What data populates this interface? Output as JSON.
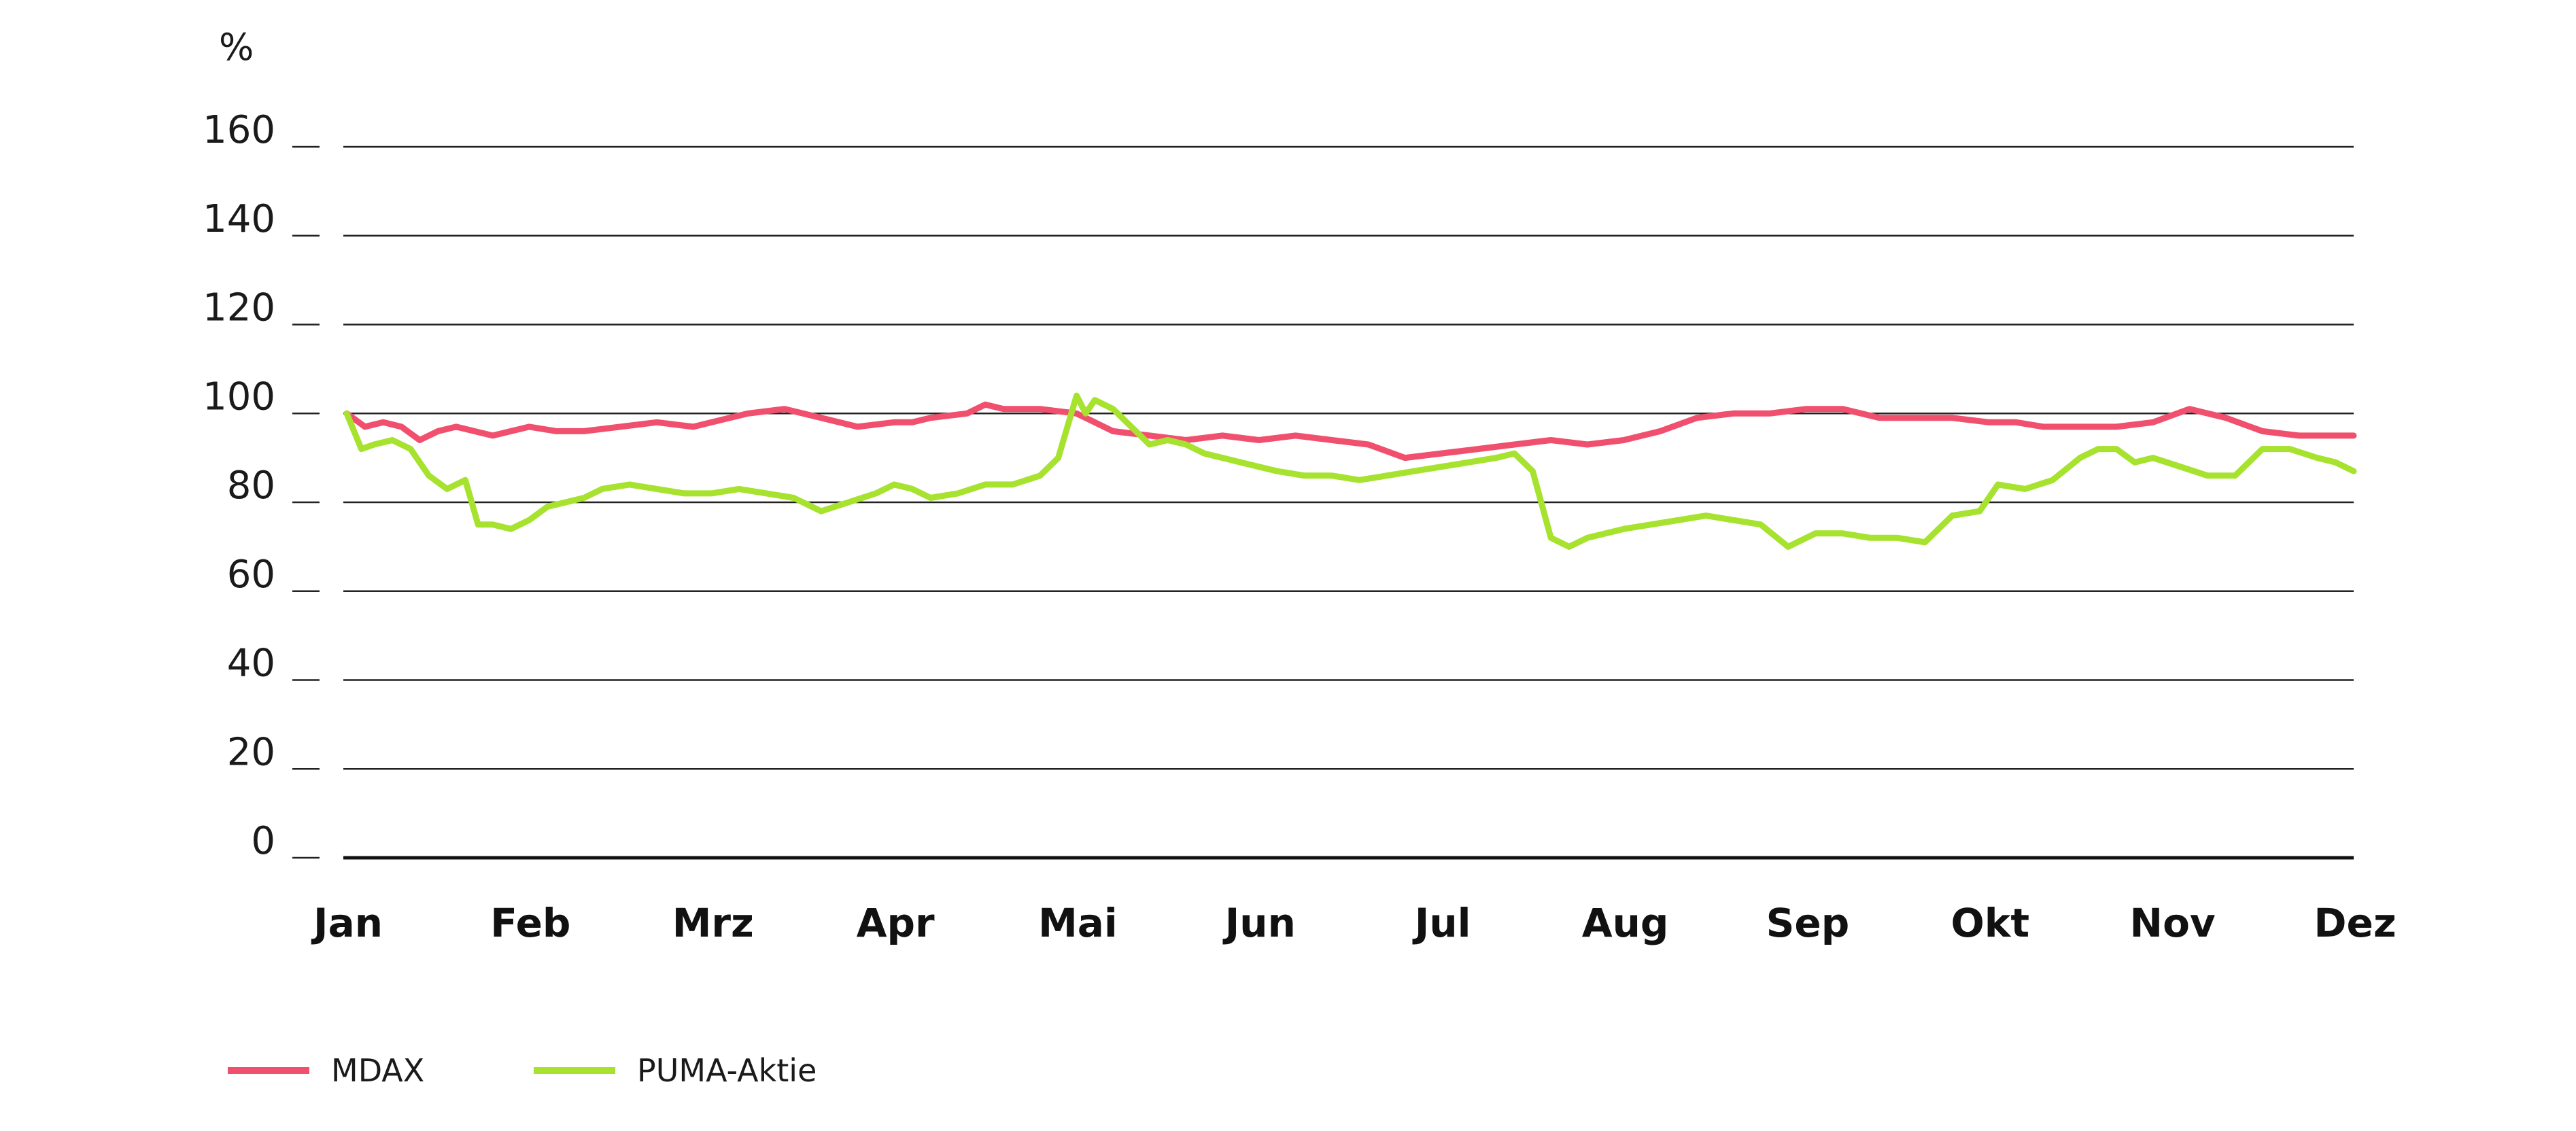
{
  "chart_data": {
    "type": "line",
    "y_unit_label": "%",
    "ylim": [
      0,
      160
    ],
    "yticks": [
      0,
      20,
      40,
      60,
      80,
      100,
      120,
      140,
      160
    ],
    "x_tick_labels": [
      "Jan",
      "Feb",
      "Mrz",
      "Apr",
      "Mai",
      "Jun",
      "Jul",
      "Aug",
      "Sep",
      "Okt",
      "Nov",
      "Dez"
    ],
    "x_range": [
      0,
      11
    ],
    "grid": true,
    "legend_position": "bottom-left",
    "series": [
      {
        "name": "MDAX",
        "color": "#f0506e",
        "x": [
          0.0,
          0.1,
          0.2,
          0.3,
          0.4,
          0.5,
          0.6,
          0.7,
          0.8,
          0.9,
          1.0,
          1.15,
          1.3,
          1.5,
          1.7,
          1.9,
          2.0,
          2.2,
          2.4,
          2.6,
          2.8,
          3.0,
          3.1,
          3.2,
          3.4,
          3.5,
          3.6,
          3.8,
          4.0,
          4.1,
          4.2,
          4.4,
          4.6,
          4.8,
          5.0,
          5.2,
          5.4,
          5.6,
          5.8,
          6.0,
          6.2,
          6.4,
          6.6,
          6.8,
          7.0,
          7.2,
          7.4,
          7.6,
          7.8,
          8.0,
          8.2,
          8.4,
          8.6,
          8.8,
          9.0,
          9.15,
          9.3,
          9.5,
          9.7,
          9.9,
          10.1,
          10.3,
          10.5,
          10.7,
          10.9,
          11.0
        ],
        "y": [
          100,
          97,
          98,
          97,
          94,
          96,
          97,
          96,
          95,
          96,
          97,
          96,
          96,
          97,
          98,
          97,
          98,
          100,
          101,
          99,
          97,
          98,
          98,
          99,
          100,
          102,
          101,
          101,
          100,
          98,
          96,
          95,
          94,
          95,
          94,
          95,
          94,
          93,
          90,
          91,
          92,
          93,
          94,
          93,
          94,
          96,
          99,
          100,
          100,
          101,
          101,
          99,
          99,
          99,
          98,
          98,
          97,
          97,
          97,
          98,
          101,
          99,
          96,
          95,
          95,
          95
        ]
      },
      {
        "name": "PUMA-Aktie",
        "color": "#a6e22e",
        "x": [
          0.0,
          0.08,
          0.15,
          0.25,
          0.35,
          0.45,
          0.55,
          0.65,
          0.72,
          0.8,
          0.9,
          1.0,
          1.1,
          1.2,
          1.3,
          1.4,
          1.55,
          1.7,
          1.85,
          2.0,
          2.15,
          2.3,
          2.45,
          2.6,
          2.75,
          2.9,
          3.0,
          3.1,
          3.2,
          3.35,
          3.5,
          3.65,
          3.8,
          3.9,
          4.0,
          4.05,
          4.1,
          4.2,
          4.3,
          4.4,
          4.5,
          4.6,
          4.7,
          4.8,
          4.9,
          5.0,
          5.1,
          5.25,
          5.4,
          5.55,
          5.7,
          5.85,
          6.0,
          6.15,
          6.3,
          6.4,
          6.5,
          6.6,
          6.7,
          6.8,
          6.9,
          7.0,
          7.15,
          7.3,
          7.45,
          7.6,
          7.75,
          7.9,
          8.05,
          8.2,
          8.35,
          8.5,
          8.65,
          8.8,
          8.95,
          9.05,
          9.2,
          9.35,
          9.5,
          9.6,
          9.7,
          9.8,
          9.9,
          10.05,
          10.2,
          10.35,
          10.5,
          10.65,
          10.8,
          10.9,
          11.0
        ],
        "y": [
          100,
          92,
          93,
          94,
          92,
          86,
          83,
          85,
          75,
          75,
          74,
          76,
          79,
          80,
          81,
          83,
          84,
          83,
          82,
          82,
          83,
          82,
          81,
          78,
          80,
          82,
          84,
          83,
          81,
          82,
          84,
          84,
          86,
          90,
          104,
          100,
          103,
          101,
          97,
          93,
          94,
          93,
          91,
          90,
          89,
          88,
          87,
          86,
          86,
          85,
          86,
          87,
          88,
          89,
          90,
          91,
          87,
          72,
          70,
          72,
          73,
          74,
          75,
          76,
          77,
          76,
          75,
          70,
          73,
          73,
          72,
          72,
          71,
          77,
          78,
          84,
          83,
          85,
          90,
          92,
          92,
          89,
          90,
          88,
          86,
          86,
          92,
          92,
          90,
          89,
          87
        ]
      }
    ]
  }
}
